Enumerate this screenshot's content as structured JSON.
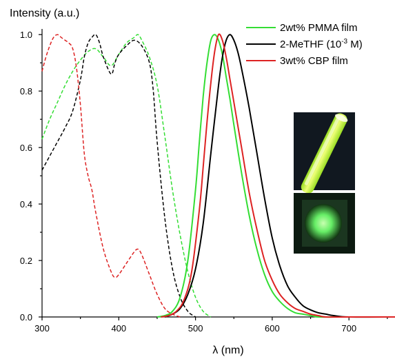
{
  "chart_data": {
    "type": "line",
    "ylabel": "Intensity (a.u.)",
    "xlabel": "λ (nm)",
    "xlim": [
      300,
      760
    ],
    "ylim": [
      0,
      1.02
    ],
    "xticks": [
      300,
      400,
      500,
      600,
      700
    ],
    "yticks": [
      0.0,
      0.2,
      0.4,
      0.6,
      0.8,
      1.0
    ],
    "ytick_labels": [
      "0.0",
      "0.2",
      "0.4",
      "0.6",
      "0.8",
      "1.0"
    ],
    "legend_position": "top-right",
    "legend": [
      {
        "name": "2wt% PMMA film",
        "color": "#33dd33"
      },
      {
        "name": "2-MeTHF (10",
        "sup": "-3",
        "tail": " M)",
        "color": "#000000"
      },
      {
        "name": "3wt% CBP film",
        "color": "#dd2222"
      }
    ],
    "series": [
      {
        "name": "2wt% PMMA film",
        "kind": "absorption",
        "style": "dashed",
        "color": "#33dd33",
        "x": [
          300,
          310,
          320,
          330,
          340,
          350,
          360,
          370,
          380,
          390,
          400,
          410,
          420,
          425,
          430,
          440,
          450,
          460,
          470,
          480,
          490,
          500,
          510,
          520
        ],
        "y": [
          0.63,
          0.7,
          0.76,
          0.82,
          0.87,
          0.91,
          0.94,
          0.95,
          0.92,
          0.89,
          0.93,
          0.97,
          0.99,
          1.0,
          0.98,
          0.92,
          0.82,
          0.64,
          0.45,
          0.29,
          0.16,
          0.07,
          0.02,
          0.0
        ]
      },
      {
        "name": "2-MeTHF (10-3 M)",
        "kind": "absorption",
        "style": "dashed",
        "color": "#000000",
        "x": [
          300,
          310,
          320,
          330,
          340,
          350,
          355,
          360,
          365,
          370,
          375,
          380,
          390,
          395,
          400,
          410,
          420,
          430,
          440,
          445,
          450,
          460,
          470,
          480,
          490,
          500
        ],
        "y": [
          0.52,
          0.57,
          0.62,
          0.67,
          0.73,
          0.84,
          0.92,
          0.97,
          0.99,
          1.0,
          0.97,
          0.92,
          0.86,
          0.9,
          0.93,
          0.96,
          0.98,
          0.96,
          0.9,
          0.8,
          0.62,
          0.35,
          0.17,
          0.07,
          0.02,
          0.0
        ]
      },
      {
        "name": "3wt% CBP film",
        "kind": "absorption",
        "style": "dashed",
        "color": "#dd2222",
        "x": [
          300,
          305,
          310,
          315,
          320,
          325,
          330,
          335,
          340,
          345,
          350,
          355,
          360,
          365,
          370,
          380,
          390,
          395,
          400,
          410,
          420,
          425,
          430,
          440,
          450,
          460,
          470,
          480
        ],
        "y": [
          0.87,
          0.92,
          0.96,
          0.99,
          1.0,
          0.99,
          0.98,
          0.97,
          0.95,
          0.88,
          0.75,
          0.58,
          0.5,
          0.45,
          0.37,
          0.24,
          0.16,
          0.14,
          0.15,
          0.19,
          0.23,
          0.24,
          0.22,
          0.15,
          0.08,
          0.03,
          0.01,
          0.0
        ]
      },
      {
        "name": "2wt% PMMA film",
        "kind": "emission",
        "style": "solid",
        "color": "#33dd33",
        "x": [
          450,
          460,
          470,
          480,
          490,
          500,
          505,
          510,
          515,
          520,
          525,
          530,
          535,
          540,
          545,
          550,
          560,
          570,
          580,
          590,
          600,
          610,
          620,
          630,
          640,
          650,
          660,
          680,
          700,
          760
        ],
        "y": [
          0.0,
          0.005,
          0.02,
          0.07,
          0.2,
          0.45,
          0.62,
          0.78,
          0.9,
          0.98,
          1.0,
          0.98,
          0.93,
          0.85,
          0.77,
          0.68,
          0.51,
          0.36,
          0.24,
          0.15,
          0.09,
          0.055,
          0.03,
          0.015,
          0.01,
          0.005,
          0.0,
          0.0,
          0.0,
          0.0
        ]
      },
      {
        "name": "2-MeTHF (10-3 M)",
        "kind": "emission",
        "style": "solid",
        "color": "#000000",
        "x": [
          460,
          470,
          480,
          490,
          500,
          510,
          520,
          530,
          535,
          540,
          545,
          550,
          555,
          560,
          570,
          580,
          590,
          600,
          610,
          620,
          630,
          640,
          650,
          660,
          670,
          680,
          700,
          760
        ],
        "y": [
          0.0,
          0.01,
          0.03,
          0.08,
          0.17,
          0.33,
          0.58,
          0.82,
          0.92,
          0.98,
          1.0,
          0.98,
          0.94,
          0.88,
          0.74,
          0.58,
          0.42,
          0.28,
          0.18,
          0.11,
          0.07,
          0.04,
          0.025,
          0.015,
          0.01,
          0.005,
          0.0,
          0.0
        ]
      },
      {
        "name": "3wt% CBP film",
        "kind": "emission",
        "style": "solid",
        "color": "#dd2222",
        "x": [
          455,
          465,
          475,
          485,
          495,
          505,
          510,
          515,
          520,
          525,
          530,
          535,
          540,
          545,
          550,
          560,
          570,
          580,
          590,
          600,
          610,
          620,
          630,
          640,
          650,
          660,
          670,
          700,
          760
        ],
        "y": [
          0.0,
          0.005,
          0.02,
          0.06,
          0.16,
          0.38,
          0.53,
          0.69,
          0.83,
          0.94,
          1.0,
          0.98,
          0.92,
          0.84,
          0.76,
          0.6,
          0.44,
          0.31,
          0.2,
          0.13,
          0.08,
          0.05,
          0.03,
          0.02,
          0.01,
          0.005,
          0.0,
          0.0,
          0.0
        ]
      }
    ]
  },
  "inset": {
    "top_photo": "glowing green-yellow tube",
    "bottom_photo": "glowing green film",
    "glow_color": "#ccff55",
    "film_color": "#66ff77"
  }
}
